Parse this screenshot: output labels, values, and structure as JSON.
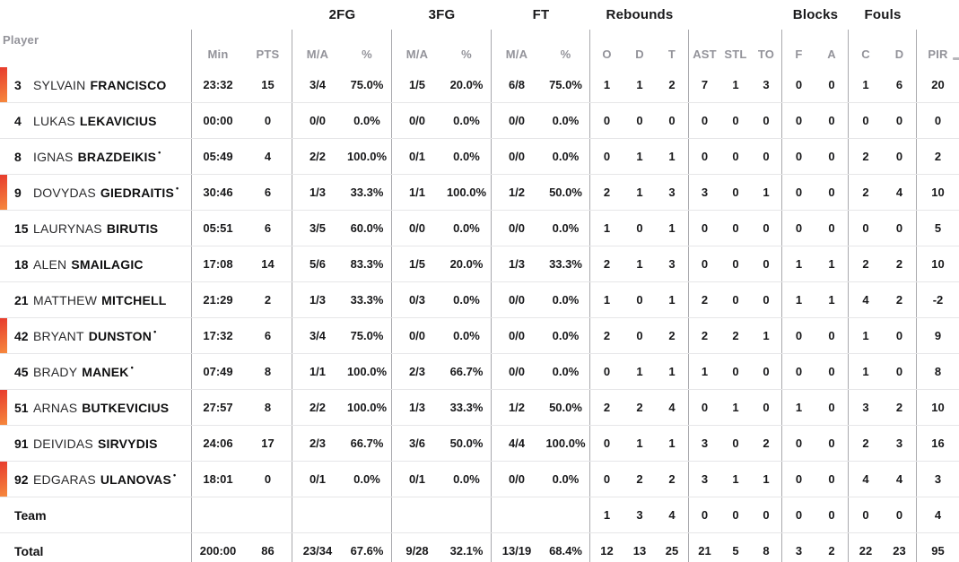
{
  "colors": {
    "marker_top": "#e73b2d",
    "marker_bottom": "#f6893d",
    "divider": "#a9a9ad",
    "row_line": "#e6e6e8",
    "muted": "#93939a",
    "text": "#18181a"
  },
  "header": {
    "player_label": "Player",
    "groups": [
      "2FG",
      "3FG",
      "FT",
      "Rebounds",
      "Blocks",
      "Fouls"
    ],
    "cols": {
      "min": "Min",
      "pts": "PTS",
      "ma": "M/A",
      "pct": "%",
      "o": "O",
      "d": "D",
      "t": "T",
      "ast": "AST",
      "stl": "STL",
      "to": "TO",
      "f": "F",
      "a": "A",
      "c": "C",
      "pir": "PIR"
    }
  },
  "rows": [
    {
      "oncourt": true,
      "number": "3",
      "first": "SYLVAIN",
      "last": "FRANCISCO",
      "min": "23:32",
      "pts": "15",
      "f2ma": "3/4",
      "f2p": "75.0%",
      "f3ma": "1/5",
      "f3p": "20.0%",
      "ftma": "6/8",
      "ftp": "75.0%",
      "ro": "1",
      "rd": "1",
      "rt": "2",
      "ast": "7",
      "stl": "1",
      "to": "3",
      "bf": "0",
      "ba": "0",
      "fc": "1",
      "fd": "6",
      "pir": "20"
    },
    {
      "number": "4",
      "first": "LUKAS",
      "last": "LEKAVICIUS",
      "min": "00:00",
      "pts": "0",
      "f2ma": "0/0",
      "f2p": "0.0%",
      "f3ma": "0/0",
      "f3p": "0.0%",
      "ftma": "0/0",
      "ftp": "0.0%",
      "ro": "0",
      "rd": "0",
      "rt": "0",
      "ast": "0",
      "stl": "0",
      "to": "0",
      "bf": "0",
      "ba": "0",
      "fc": "0",
      "fd": "0",
      "pir": "0"
    },
    {
      "number": "8",
      "first": "IGNAS",
      "last": "BRAZDEIKIS",
      "star": "•",
      "min": "05:49",
      "pts": "4",
      "f2ma": "2/2",
      "f2p": "100.0%",
      "f3ma": "0/1",
      "f3p": "0.0%",
      "ftma": "0/0",
      "ftp": "0.0%",
      "ro": "0",
      "rd": "1",
      "rt": "1",
      "ast": "0",
      "stl": "0",
      "to": "0",
      "bf": "0",
      "ba": "0",
      "fc": "2",
      "fd": "0",
      "pir": "2"
    },
    {
      "oncourt": true,
      "number": "9",
      "first": "DOVYDAS",
      "last": "GIEDRAITIS",
      "star": "•",
      "min": "30:46",
      "pts": "6",
      "f2ma": "1/3",
      "f2p": "33.3%",
      "f3ma": "1/1",
      "f3p": "100.0%",
      "ftma": "1/2",
      "ftp": "50.0%",
      "ro": "2",
      "rd": "1",
      "rt": "3",
      "ast": "3",
      "stl": "0",
      "to": "1",
      "bf": "0",
      "ba": "0",
      "fc": "2",
      "fd": "4",
      "pir": "10"
    },
    {
      "number": "15",
      "first": "LAURYNAS",
      "last": "BIRUTIS",
      "min": "05:51",
      "pts": "6",
      "f2ma": "3/5",
      "f2p": "60.0%",
      "f3ma": "0/0",
      "f3p": "0.0%",
      "ftma": "0/0",
      "ftp": "0.0%",
      "ro": "1",
      "rd": "0",
      "rt": "1",
      "ast": "0",
      "stl": "0",
      "to": "0",
      "bf": "0",
      "ba": "0",
      "fc": "0",
      "fd": "0",
      "pir": "5"
    },
    {
      "number": "18",
      "first": "ALEN",
      "last": "SMAILAGIC",
      "min": "17:08",
      "pts": "14",
      "f2ma": "5/6",
      "f2p": "83.3%",
      "f3ma": "1/5",
      "f3p": "20.0%",
      "ftma": "1/3",
      "ftp": "33.3%",
      "ro": "2",
      "rd": "1",
      "rt": "3",
      "ast": "0",
      "stl": "0",
      "to": "0",
      "bf": "1",
      "ba": "1",
      "fc": "2",
      "fd": "2",
      "pir": "10"
    },
    {
      "number": "21",
      "first": "MATTHEW",
      "last": "MITCHELL",
      "min": "21:29",
      "pts": "2",
      "f2ma": "1/3",
      "f2p": "33.3%",
      "f3ma": "0/3",
      "f3p": "0.0%",
      "ftma": "0/0",
      "ftp": "0.0%",
      "ro": "1",
      "rd": "0",
      "rt": "1",
      "ast": "2",
      "stl": "0",
      "to": "0",
      "bf": "1",
      "ba": "1",
      "fc": "4",
      "fd": "2",
      "pir": "-2"
    },
    {
      "oncourt": true,
      "number": "42",
      "first": "BRYANT",
      "last": "DUNSTON",
      "star": "•",
      "min": "17:32",
      "pts": "6",
      "f2ma": "3/4",
      "f2p": "75.0%",
      "f3ma": "0/0",
      "f3p": "0.0%",
      "ftma": "0/0",
      "ftp": "0.0%",
      "ro": "2",
      "rd": "0",
      "rt": "2",
      "ast": "2",
      "stl": "2",
      "to": "1",
      "bf": "0",
      "ba": "0",
      "fc": "1",
      "fd": "0",
      "pir": "9"
    },
    {
      "number": "45",
      "first": "BRADY",
      "last": "MANEK",
      "star": "•",
      "min": "07:49",
      "pts": "8",
      "f2ma": "1/1",
      "f2p": "100.0%",
      "f3ma": "2/3",
      "f3p": "66.7%",
      "ftma": "0/0",
      "ftp": "0.0%",
      "ro": "0",
      "rd": "1",
      "rt": "1",
      "ast": "1",
      "stl": "0",
      "to": "0",
      "bf": "0",
      "ba": "0",
      "fc": "1",
      "fd": "0",
      "pir": "8"
    },
    {
      "oncourt": true,
      "number": "51",
      "first": "ARNAS",
      "last": "BUTKEVICIUS",
      "min": "27:57",
      "pts": "8",
      "f2ma": "2/2",
      "f2p": "100.0%",
      "f3ma": "1/3",
      "f3p": "33.3%",
      "ftma": "1/2",
      "ftp": "50.0%",
      "ro": "2",
      "rd": "2",
      "rt": "4",
      "ast": "0",
      "stl": "1",
      "to": "0",
      "bf": "1",
      "ba": "0",
      "fc": "3",
      "fd": "2",
      "pir": "10"
    },
    {
      "number": "91",
      "first": "DEIVIDAS",
      "last": "SIRVYDIS",
      "min": "24:06",
      "pts": "17",
      "f2ma": "2/3",
      "f2p": "66.7%",
      "f3ma": "3/6",
      "f3p": "50.0%",
      "ftma": "4/4",
      "ftp": "100.0%",
      "ro": "0",
      "rd": "1",
      "rt": "1",
      "ast": "3",
      "stl": "0",
      "to": "2",
      "bf": "0",
      "ba": "0",
      "fc": "2",
      "fd": "3",
      "pir": "16"
    },
    {
      "oncourt": true,
      "number": "92",
      "first": "EDGARAS",
      "last": "ULANOVAS",
      "star": "•",
      "min": "18:01",
      "pts": "0",
      "f2ma": "0/1",
      "f2p": "0.0%",
      "f3ma": "0/1",
      "f3p": "0.0%",
      "ftma": "0/0",
      "ftp": "0.0%",
      "ro": "0",
      "rd": "2",
      "rt": "2",
      "ast": "3",
      "stl": "1",
      "to": "1",
      "bf": "0",
      "ba": "0",
      "fc": "4",
      "fd": "4",
      "pir": "3"
    },
    {
      "interactable": false,
      "label": "Team",
      "ro": "1",
      "rd": "3",
      "rt": "4",
      "ast": "0",
      "stl": "0",
      "to": "0",
      "bf": "0",
      "ba": "0",
      "fc": "0",
      "fd": "0",
      "pir": "4"
    },
    {
      "interactable": false,
      "label": "Total",
      "min": "200:00",
      "pts": "86",
      "f2ma": "23/34",
      "f2p": "67.6%",
      "f3ma": "9/28",
      "f3p": "32.1%",
      "ftma": "13/19",
      "ftp": "68.4%",
      "ro": "12",
      "rd": "13",
      "rt": "25",
      "ast": "21",
      "stl": "5",
      "to": "8",
      "bf": "3",
      "ba": "2",
      "fc": "22",
      "fd": "23",
      "pir": "95"
    }
  ]
}
